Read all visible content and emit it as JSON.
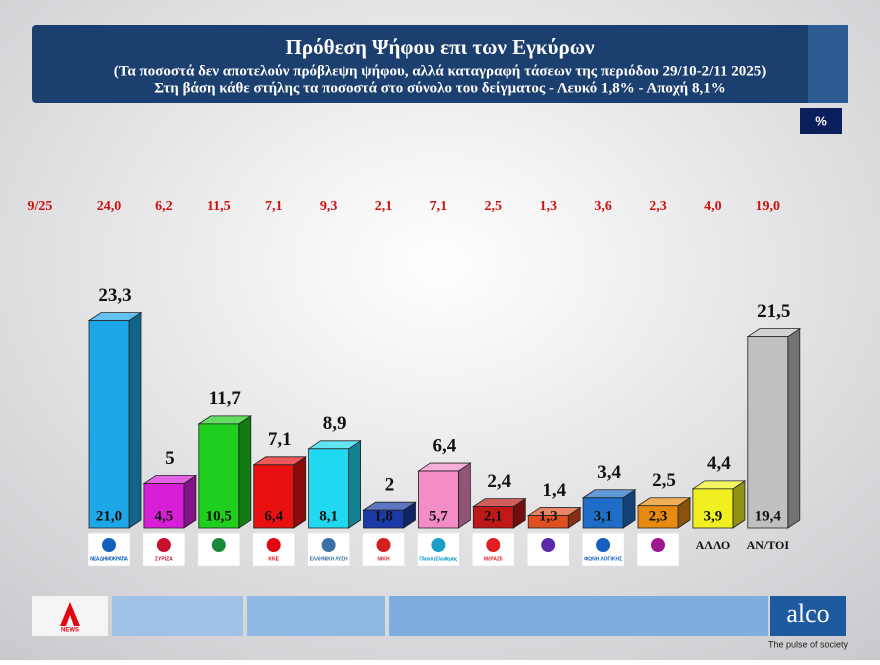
{
  "chart_data": {
    "type": "bar3d",
    "title": "Πρόθεση Ψήφου επι των Εγκύρων",
    "subtitle": [
      "(Τα ποσοστά δεν αποτελούν πρόβλεψη ψήφου, αλλά καταγραφή τάσεων της περιόδου  29/10-2/11 2025)",
      "Στη βάση κάθε στήλης τα ποσοστά στο σύνολο του δείγματος - Λευκό 1,8% - Αποχή 8,1%"
    ],
    "unit_label": "%",
    "categories": [
      "ΝΕΑ ΔΗΜΟΚΡΑΤΙΑ",
      "ΣΥΡΙΖΑ",
      null,
      "ΚΚΕ",
      "ΕΛΛΗΝΙΚΗ ΛΥΣΗ",
      "ΝΙΚΗ",
      "Πλεύση Ελευθερίας",
      "ΜέΡΑ25",
      null,
      "ΦΩΝΗ ΛΟΓΙΚΗΣ",
      null,
      "ΑΛΛΟ",
      "ΑΝ/ΤΟΙ"
    ],
    "logo_colors": [
      "#1560bd",
      "#c8102e",
      "#1a8a3a",
      "#e30613",
      "#3a6ea5",
      "#d02020",
      "#1aa0c8",
      "#e02020",
      "#5a2aa8",
      "#1560bd",
      "#a01890",
      null,
      null
    ],
    "previous": {
      "name": "9/25",
      "color": "#d01010",
      "values": [
        24.0,
        6.2,
        11.5,
        7.1,
        9.3,
        2.1,
        7.1,
        2.5,
        1.3,
        3.6,
        2.3,
        4.0,
        19.0
      ],
      "value_labels": [
        "24,0",
        "6,2",
        "11,5",
        "7,1",
        "9,3",
        "2,1",
        "7,1",
        "2,5",
        "1,3",
        "3,6",
        "2,3",
        "4,0",
        "19,0"
      ]
    },
    "valid": {
      "colors": [
        "#1ea7e8",
        "#d81fd8",
        "#1ecf1e",
        "#e81010",
        "#20d8f0",
        "#1a3aa8",
        "#f48cc8",
        "#c01818",
        "#e05020",
        "#1e6ec8",
        "#e88a10",
        "#f0f020",
        "#c0c0c0"
      ],
      "values": [
        23.3,
        5,
        11.7,
        7.1,
        8.9,
        2,
        6.4,
        2.4,
        1.4,
        3.4,
        2.5,
        4.4,
        21.5
      ],
      "value_labels": [
        "23,3",
        "5",
        "11,7",
        "7,1",
        "8,9",
        "2",
        "6,4",
        "2,4",
        "1,4",
        "3,4",
        "2,5",
        "4,4",
        "21,5"
      ]
    },
    "sample": {
      "values": [
        21.0,
        4.5,
        10.5,
        6.4,
        8.1,
        1.8,
        5.7,
        2.1,
        1.3,
        3.1,
        2.3,
        3.9,
        19.4
      ],
      "value_labels": [
        "21,0",
        "4,5",
        "10,5",
        "6,4",
        "8,1",
        "1,8",
        "5,7",
        "2,1",
        "1,3",
        "3,1",
        "2,3",
        "3,9",
        "19,4"
      ]
    }
  },
  "footer": {
    "channel": "NEWS",
    "brand": "alco",
    "tagline": "The pulse of society"
  }
}
